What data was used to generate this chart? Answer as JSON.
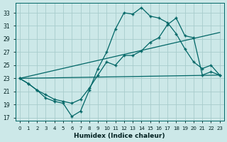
{
  "bg_color": "#cce8e8",
  "grid_color": "#a8cccc",
  "line_color": "#006666",
  "xlabel": "Humidex (Indice chaleur)",
  "xlim": [
    -0.5,
    23.5
  ],
  "ylim": [
    16.5,
    34.5
  ],
  "xticks": [
    0,
    1,
    2,
    3,
    4,
    5,
    6,
    7,
    8,
    9,
    10,
    11,
    12,
    13,
    14,
    15,
    16,
    17,
    18,
    19,
    20,
    21,
    22,
    23
  ],
  "yticks": [
    17,
    19,
    21,
    23,
    25,
    27,
    29,
    31,
    33
  ],
  "line1": {
    "x": [
      0,
      1,
      2,
      3,
      4,
      5,
      6,
      7,
      8,
      9,
      10,
      11,
      12,
      13,
      14,
      15,
      16,
      17,
      18,
      19,
      20,
      21,
      22,
      23
    ],
    "y": [
      23,
      22.2,
      21.2,
      20.0,
      19.5,
      19.2,
      17.2,
      18.0,
      21.2,
      24.5,
      27.0,
      30.5,
      33.0,
      32.8,
      33.8,
      32.5,
      32.2,
      31.5,
      29.8,
      27.5,
      25.5,
      24.5,
      25.0,
      23.5
    ]
  },
  "line2": {
    "x": [
      0,
      1,
      2,
      3,
      4,
      5,
      6,
      7,
      8,
      9,
      10,
      11,
      12,
      13,
      14,
      15,
      16,
      17,
      18,
      19,
      20,
      21,
      22,
      23
    ],
    "y": [
      23,
      22.2,
      21.2,
      20.5,
      19.8,
      19.5,
      19.2,
      19.8,
      21.5,
      23.5,
      25.5,
      25.0,
      26.5,
      26.5,
      27.2,
      28.5,
      29.2,
      31.2,
      32.2,
      29.5,
      29.2,
      23.5,
      24.0,
      23.5
    ]
  },
  "line3": {
    "x": [
      0,
      23
    ],
    "y": [
      23,
      30.0
    ]
  },
  "line4": {
    "x": [
      0,
      23
    ],
    "y": [
      23,
      23.5
    ]
  }
}
